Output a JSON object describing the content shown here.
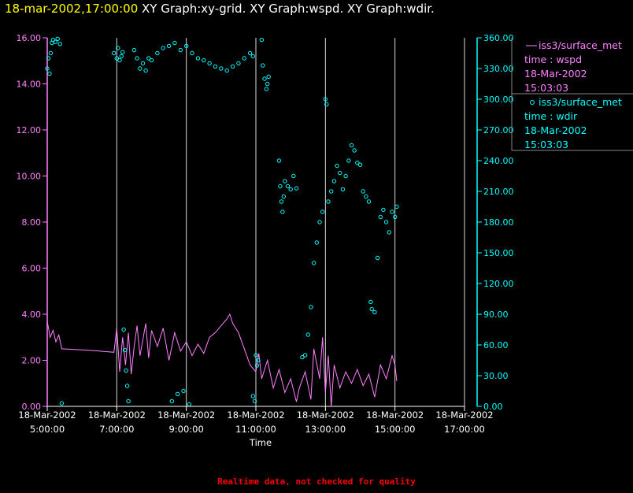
{
  "header": {
    "time": "18-mar-2002,17:00:00",
    "graphs": "XY Graph:xy-grid.  XY Graph:wspd.  XY Graph:wdir."
  },
  "footer": {
    "notice": "Realtime data, not checked for quality"
  },
  "colors": {
    "wspd": "#ff80ff",
    "wdir": "#00ffff",
    "grid": "#ffffff",
    "header_time": "#ffff00",
    "notice": "#ff0000"
  },
  "legend": [
    {
      "marker": "line",
      "name": "iss3/surface_met",
      "var": "time : wspd",
      "date": "18-Mar-2002",
      "time": "15:03:03"
    },
    {
      "marker": "circle",
      "name": "iss3/surface_met",
      "var": "time : wdir",
      "date": "18-Mar-2002",
      "time": "15:03:03"
    }
  ],
  "chart_data": {
    "type": "scatter",
    "xlabel": "Time",
    "x_ticks": [
      {
        "date": "18-Mar-2002",
        "time": "5:00:00"
      },
      {
        "date": "18-Mar-2002",
        "time": "7:00:00"
      },
      {
        "date": "18-Mar-2002",
        "time": "9:00:00"
      },
      {
        "date": "18-Mar-2002",
        "time": "11:00:00"
      },
      {
        "date": "18-Mar-2002",
        "time": "13:00:00"
      },
      {
        "date": "18-Mar-2002",
        "time": "15:00:00"
      },
      {
        "date": "18-Mar-2002",
        "time": "17:00:00"
      }
    ],
    "xlim": [
      "5:00",
      "17:00"
    ],
    "y_left": {
      "lim": [
        0,
        16
      ],
      "ticks": [
        "0.00",
        "2.00",
        "4.00",
        "6.00",
        "8.00",
        "10.00",
        "12.00",
        "14.00",
        "16.00"
      ]
    },
    "y_right": {
      "lim": [
        0,
        360
      ],
      "ticks": [
        "0.00",
        "30.00",
        "60.00",
        "90.00",
        "120.00",
        "150.00",
        "180.00",
        "210.00",
        "240.00",
        "270.00",
        "300.00",
        "330.00",
        "360.00"
      ]
    },
    "grid": "vertical",
    "series": [
      {
        "name": "wspd",
        "axis": "left",
        "style": "line",
        "points": [
          [
            "5:00",
            3.7
          ],
          [
            "5:05",
            3.0
          ],
          [
            "5:10",
            3.3
          ],
          [
            "5:15",
            2.8
          ],
          [
            "5:20",
            3.1
          ],
          [
            "5:25",
            2.5
          ],
          [
            "6:00",
            2.45
          ],
          [
            "6:30",
            2.4
          ],
          [
            "6:55",
            2.35
          ],
          [
            "7:00",
            3.4
          ],
          [
            "7:05",
            1.5
          ],
          [
            "7:10",
            3.0
          ],
          [
            "7:15",
            1.8
          ],
          [
            "7:20",
            3.2
          ],
          [
            "7:25",
            1.4
          ],
          [
            "7:30",
            2.6
          ],
          [
            "7:35",
            3.5
          ],
          [
            "7:40",
            2.2
          ],
          [
            "7:45",
            2.9
          ],
          [
            "7:50",
            3.6
          ],
          [
            "7:55",
            2.1
          ],
          [
            "8:00",
            3.3
          ],
          [
            "8:10",
            2.6
          ],
          [
            "8:20",
            3.4
          ],
          [
            "8:30",
            2.0
          ],
          [
            "8:40",
            3.2
          ],
          [
            "8:50",
            2.4
          ],
          [
            "9:00",
            2.8
          ],
          [
            "9:10",
            2.2
          ],
          [
            "9:20",
            2.7
          ],
          [
            "9:30",
            2.3
          ],
          [
            "9:40",
            3.0
          ],
          [
            "9:50",
            3.2
          ],
          [
            "10:00",
            3.5
          ],
          [
            "10:10",
            3.8
          ],
          [
            "10:15",
            4.0
          ],
          [
            "10:20",
            3.6
          ],
          [
            "10:30",
            3.2
          ],
          [
            "10:40",
            2.5
          ],
          [
            "10:50",
            1.8
          ],
          [
            "11:00",
            1.5
          ],
          [
            "11:05",
            2.3
          ],
          [
            "11:10",
            1.2
          ],
          [
            "11:20",
            2.0
          ],
          [
            "11:30",
            0.8
          ],
          [
            "11:40",
            1.6
          ],
          [
            "11:50",
            0.6
          ],
          [
            "12:00",
            1.2
          ],
          [
            "12:10",
            0.2
          ],
          [
            "12:15",
            0.8
          ],
          [
            "12:25",
            1.5
          ],
          [
            "12:35",
            0.3
          ],
          [
            "12:40",
            2.5
          ],
          [
            "12:50",
            1.2
          ],
          [
            "12:55",
            3.0
          ],
          [
            "13:00",
            0.6
          ],
          [
            "13:05",
            2.2
          ],
          [
            "13:10",
            0.0
          ],
          [
            "13:15",
            1.8
          ],
          [
            "13:25",
            0.8
          ],
          [
            "13:35",
            1.5
          ],
          [
            "13:45",
            1.0
          ],
          [
            "13:55",
            1.6
          ],
          [
            "14:05",
            0.9
          ],
          [
            "14:15",
            1.4
          ],
          [
            "14:25",
            0.4
          ],
          [
            "14:35",
            1.8
          ],
          [
            "14:45",
            1.2
          ],
          [
            "14:55",
            2.2
          ],
          [
            "15:00",
            1.8
          ],
          [
            "15:03",
            1.1
          ]
        ]
      },
      {
        "name": "wdir",
        "axis": "right",
        "style": "circle",
        "points": [
          [
            "5:00",
            330
          ],
          [
            "5:02",
            340
          ],
          [
            "5:04",
            325
          ],
          [
            "5:06",
            345
          ],
          [
            "5:08",
            355
          ],
          [
            "5:10",
            358
          ],
          [
            "5:14",
            356
          ],
          [
            "5:18",
            359
          ],
          [
            "5:22",
            354
          ],
          [
            "5:25",
            3
          ],
          [
            "6:55",
            345
          ],
          [
            "7:00",
            340
          ],
          [
            "7:02",
            350
          ],
          [
            "7:05",
            338
          ],
          [
            "7:08",
            342
          ],
          [
            "7:10",
            346
          ],
          [
            "7:12",
            75
          ],
          [
            "7:14",
            55
          ],
          [
            "7:16",
            35
          ],
          [
            "7:18",
            20
          ],
          [
            "7:20",
            5
          ],
          [
            "7:30",
            348
          ],
          [
            "7:35",
            340
          ],
          [
            "7:40",
            330
          ],
          [
            "7:45",
            335
          ],
          [
            "7:50",
            328
          ],
          [
            "7:55",
            340
          ],
          [
            "8:00",
            338
          ],
          [
            "8:10",
            345
          ],
          [
            "8:20",
            350
          ],
          [
            "8:30",
            352
          ],
          [
            "8:40",
            355
          ],
          [
            "8:50",
            348
          ],
          [
            "9:00",
            352
          ],
          [
            "8:35",
            5
          ],
          [
            "8:45",
            12
          ],
          [
            "8:55",
            15
          ],
          [
            "9:05",
            2
          ],
          [
            "9:10",
            345
          ],
          [
            "9:20",
            340
          ],
          [
            "9:30",
            338
          ],
          [
            "9:40",
            335
          ],
          [
            "9:50",
            332
          ],
          [
            "10:00",
            330
          ],
          [
            "10:10",
            328
          ],
          [
            "10:20",
            332
          ],
          [
            "10:30",
            335
          ],
          [
            "10:40",
            340
          ],
          [
            "10:50",
            345
          ],
          [
            "10:55",
            342
          ],
          [
            "11:00",
            50
          ],
          [
            "11:02",
            40
          ],
          [
            "11:04",
            45
          ],
          [
            "10:55",
            10
          ],
          [
            "10:58",
            5
          ],
          [
            "11:10",
            358
          ],
          [
            "11:12",
            333
          ],
          [
            "11:15",
            320
          ],
          [
            "11:18",
            310
          ],
          [
            "11:20",
            315
          ],
          [
            "11:22",
            322
          ],
          [
            "11:40",
            240
          ],
          [
            "11:42",
            215
          ],
          [
            "11:44",
            200
          ],
          [
            "11:46",
            190
          ],
          [
            "11:48",
            205
          ],
          [
            "11:50",
            220
          ],
          [
            "11:55",
            215
          ],
          [
            "12:00",
            212
          ],
          [
            "12:05",
            225
          ],
          [
            "12:10",
            213
          ],
          [
            "12:20",
            48
          ],
          [
            "12:25",
            50
          ],
          [
            "12:30",
            70
          ],
          [
            "12:35",
            97
          ],
          [
            "12:40",
            140
          ],
          [
            "12:45",
            160
          ],
          [
            "12:50",
            180
          ],
          [
            "12:55",
            190
          ],
          [
            "13:00",
            300
          ],
          [
            "13:02",
            295
          ],
          [
            "13:05",
            200
          ],
          [
            "13:10",
            210
          ],
          [
            "13:15",
            220
          ],
          [
            "13:20",
            235
          ],
          [
            "13:25",
            228
          ],
          [
            "13:30",
            212
          ],
          [
            "13:35",
            225
          ],
          [
            "13:40",
            240
          ],
          [
            "13:45",
            255
          ],
          [
            "13:50",
            250
          ],
          [
            "13:55",
            238
          ],
          [
            "14:00",
            236
          ],
          [
            "14:05",
            210
          ],
          [
            "14:10",
            205
          ],
          [
            "14:15",
            200
          ],
          [
            "14:18",
            102
          ],
          [
            "14:20",
            95
          ],
          [
            "14:25",
            92
          ],
          [
            "14:30",
            145
          ],
          [
            "14:35",
            185
          ],
          [
            "14:40",
            192
          ],
          [
            "14:45",
            180
          ],
          [
            "14:50",
            170
          ],
          [
            "14:55",
            190
          ],
          [
            "15:00",
            185
          ],
          [
            "15:03",
            195
          ]
        ]
      }
    ]
  }
}
